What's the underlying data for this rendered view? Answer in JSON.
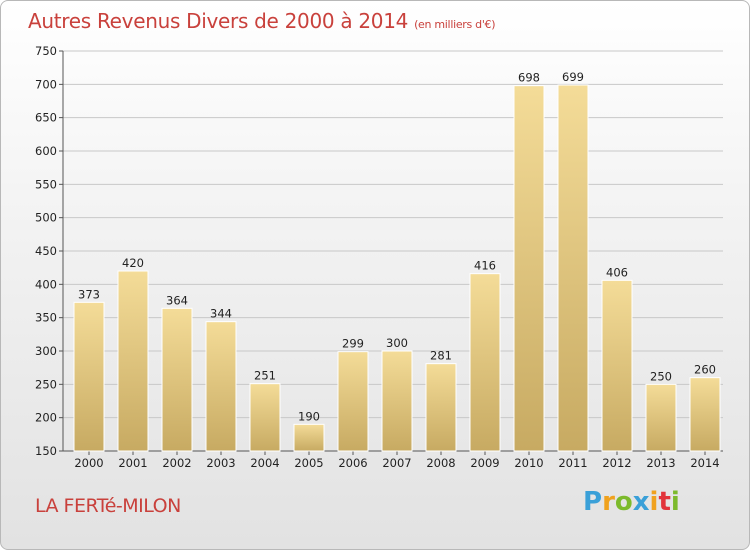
{
  "header": {
    "title": "Autres Revenus Divers de 2000 à 2014",
    "unit": "(en milliers d'€)"
  },
  "footer": {
    "city": "LA FERTé-MILON",
    "logo_letters": [
      "P",
      "r",
      "o",
      "x",
      "i",
      "t",
      "i"
    ],
    "logo_colors": [
      "#3aa0d8",
      "#f0a21e",
      "#7cba2c",
      "#3aa0d8",
      "#f0a21e",
      "#e2343b",
      "#7cba2c"
    ]
  },
  "colors": {
    "title": "#c9413c",
    "bar_top": "#f4dc98",
    "bar_bottom": "#c7aa62",
    "gridline": "#c8c8c8"
  },
  "chart_data": {
    "type": "bar",
    "title": "Autres Revenus Divers de 2000 à 2014",
    "subtitle": "(en milliers d'€)",
    "categories": [
      "2000",
      "2001",
      "2002",
      "2003",
      "2004",
      "2005",
      "2006",
      "2007",
      "2008",
      "2009",
      "2010",
      "2011",
      "2012",
      "2013",
      "2014"
    ],
    "values": [
      373,
      420,
      364,
      344,
      251,
      190,
      299,
      300,
      281,
      416,
      698,
      699,
      406,
      250,
      260
    ],
    "ylim": [
      150,
      750
    ],
    "yticks": [
      150,
      200,
      250,
      300,
      350,
      400,
      450,
      500,
      550,
      600,
      650,
      700,
      750
    ],
    "grid": true,
    "xlabel": "",
    "ylabel": ""
  }
}
